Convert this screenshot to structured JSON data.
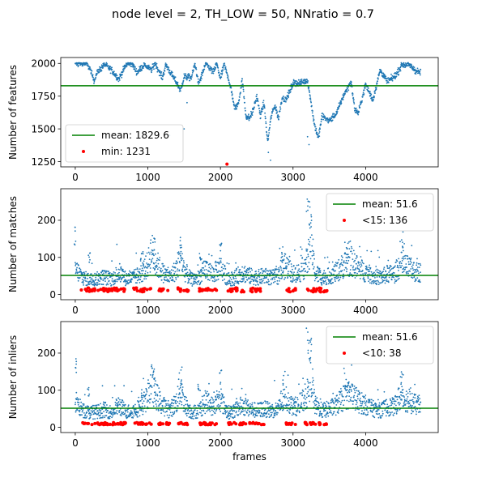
{
  "figure": {
    "suptitle": "node level = 2, TH_LOW = 50, NNratio = 0.7",
    "colors": {
      "points": "#1f77b4",
      "mean_line": "#008000",
      "highlight": "#ff0000",
      "frame": "#000000"
    }
  },
  "chart_data": [
    {
      "type": "scatter",
      "ylabel": "Number of features",
      "xlabel": "",
      "xlim": [
        -200,
        5000
      ],
      "ylim": [
        1210,
        2045
      ],
      "xticks": [
        0,
        1000,
        2000,
        3000,
        4000
      ],
      "yticks": [
        1250,
        1500,
        1750,
        2000
      ],
      "legend_position": "lower-left",
      "series": [
        {
          "name": "mean: 1829.6",
          "kind": "hline",
          "value": 1829.6
        },
        {
          "name": "min: 1231",
          "kind": "highlight",
          "points": [
            [
              2090,
              1231
            ]
          ]
        }
      ],
      "trend": {
        "x": [
          0,
          150,
          200,
          260,
          300,
          400,
          500,
          600,
          700,
          780,
          850,
          950,
          1050,
          1100,
          1200,
          1250,
          1300,
          1400,
          1450,
          1500,
          1600,
          1650,
          1700,
          1800,
          1900,
          1950,
          2000,
          2050,
          2100,
          2150,
          2200,
          2250,
          2300,
          2350,
          2400,
          2450,
          2500,
          2550,
          2600,
          2650,
          2700,
          2750,
          2800,
          2850,
          2900,
          2950,
          3000,
          3100,
          3200,
          3300,
          3350,
          3400,
          3500,
          3600,
          3700,
          3800,
          3850,
          3900,
          4000,
          4100,
          4200,
          4300,
          4400,
          4450,
          4500,
          4600,
          4700,
          4760
        ],
        "y": [
          2000,
          2000,
          1960,
          1870,
          1930,
          1990,
          1950,
          1880,
          1990,
          2000,
          1930,
          1990,
          1950,
          2000,
          1890,
          1990,
          1940,
          1850,
          1790,
          1900,
          1890,
          2000,
          1840,
          2000,
          1930,
          2000,
          1880,
          1990,
          1910,
          1790,
          1650,
          1700,
          1880,
          1600,
          1580,
          1640,
          1750,
          1600,
          1700,
          1400,
          1600,
          1680,
          1580,
          1740,
          1720,
          1780,
          1850,
          1850,
          1870,
          1520,
          1430,
          1600,
          1560,
          1620,
          1760,
          1860,
          1650,
          1620,
          1840,
          1720,
          1950,
          1860,
          1900,
          1940,
          1990,
          1990,
          1940,
          1930
        ]
      }
    },
    {
      "type": "scatter",
      "ylabel": "Number of matches",
      "xlabel": "",
      "xlim": [
        -200,
        5000
      ],
      "ylim": [
        -14,
        285
      ],
      "xticks": [
        0,
        1000,
        2000,
        3000,
        4000
      ],
      "yticks": [
        0,
        100,
        200
      ],
      "legend_position": "top-right",
      "series": [
        {
          "name": "mean: 51.6",
          "kind": "hline",
          "value": 51.6
        },
        {
          "name": "<15: 136",
          "kind": "highlight",
          "threshold": 15,
          "count": 136,
          "x_ranges": [
            [
              80,
              480
            ],
            [
              500,
              700
            ],
            [
              800,
              1050
            ],
            [
              1140,
              1300
            ],
            [
              1400,
              1560
            ],
            [
              1700,
              1950
            ],
            [
              2100,
              2350
            ],
            [
              2400,
              2600
            ],
            [
              2900,
              3050
            ],
            [
              3150,
              3470
            ]
          ]
        }
      ],
      "trend": {
        "x": [
          0,
          100,
          200,
          300,
          400,
          500,
          600,
          700,
          800,
          900,
          1000,
          1050,
          1100,
          1200,
          1300,
          1400,
          1450,
          1500,
          1600,
          1700,
          1800,
          1900,
          2000,
          2100,
          2200,
          2300,
          2400,
          2500,
          2600,
          2700,
          2800,
          2900,
          3000,
          3100,
          3200,
          3250,
          3300,
          3400,
          3500,
          3600,
          3700,
          3800,
          3900,
          4000,
          4100,
          4200,
          4300,
          4400,
          4450,
          4500,
          4600,
          4700,
          4760
        ],
        "y": [
          70,
          45,
          40,
          42,
          48,
          40,
          60,
          42,
          45,
          55,
          80,
          120,
          90,
          60,
          45,
          70,
          110,
          65,
          40,
          45,
          70,
          55,
          75,
          40,
          45,
          60,
          50,
          45,
          50,
          45,
          50,
          80,
          55,
          60,
          90,
          150,
          60,
          45,
          50,
          60,
          80,
          90,
          70,
          60,
          50,
          45,
          55,
          55,
          75,
          80,
          70,
          60,
          60
        ]
      },
      "spikes": [
        [
          0,
          185
        ],
        [
          190,
          120
        ],
        [
          1080,
          160
        ],
        [
          1450,
          165
        ],
        [
          1710,
          130
        ],
        [
          2000,
          160
        ],
        [
          3200,
          272
        ],
        [
          3240,
          250
        ],
        [
          3750,
          140
        ],
        [
          4500,
          150
        ],
        [
          920,
          110
        ],
        [
          2850,
          130
        ]
      ]
    },
    {
      "type": "scatter",
      "ylabel": "Number of inliers",
      "xlabel": "frames",
      "xlim": [
        -200,
        5000
      ],
      "ylim": [
        -14,
        285
      ],
      "xticks": [
        0,
        1000,
        2000,
        3000,
        4000
      ],
      "yticks": [
        0,
        100,
        200
      ],
      "legend_position": "top-right",
      "series": [
        {
          "name": "mean: 51.6",
          "kind": "hline",
          "value": 51.6
        },
        {
          "name": "<10: 38",
          "kind": "highlight",
          "threshold": 10,
          "count": 38,
          "x_ranges": [
            [
              80,
              480
            ],
            [
              500,
              700
            ],
            [
              800,
              1050
            ],
            [
              1140,
              1300
            ],
            [
              1400,
              1560
            ],
            [
              1700,
              1950
            ],
            [
              2100,
              2350
            ],
            [
              2400,
              2600
            ],
            [
              2900,
              3050
            ],
            [
              3150,
              3470
            ]
          ]
        }
      ],
      "trend": {
        "x": [
          0,
          100,
          200,
          300,
          400,
          500,
          600,
          700,
          800,
          900,
          1000,
          1050,
          1100,
          1200,
          1300,
          1400,
          1450,
          1500,
          1600,
          1700,
          1800,
          1900,
          2000,
          2100,
          2200,
          2300,
          2400,
          2500,
          2600,
          2700,
          2800,
          2900,
          3000,
          3100,
          3200,
          3250,
          3300,
          3400,
          3500,
          3600,
          3700,
          3800,
          3900,
          4000,
          4100,
          4200,
          4300,
          4400,
          4450,
          4500,
          4600,
          4700,
          4760
        ],
        "y": [
          70,
          45,
          40,
          42,
          48,
          40,
          60,
          42,
          45,
          55,
          80,
          120,
          90,
          60,
          45,
          70,
          110,
          65,
          40,
          45,
          70,
          55,
          75,
          40,
          45,
          60,
          50,
          45,
          50,
          45,
          50,
          80,
          55,
          60,
          90,
          150,
          60,
          45,
          50,
          60,
          80,
          90,
          70,
          60,
          50,
          45,
          55,
          55,
          75,
          80,
          70,
          60,
          60
        ]
      },
      "spikes": [
        [
          0,
          185
        ],
        [
          190,
          120
        ],
        [
          1080,
          160
        ],
        [
          1450,
          165
        ],
        [
          1710,
          130
        ],
        [
          2000,
          160
        ],
        [
          3200,
          272
        ],
        [
          3240,
          250
        ],
        [
          3750,
          140
        ],
        [
          4500,
          150
        ],
        [
          920,
          110
        ],
        [
          2850,
          130
        ]
      ]
    }
  ]
}
